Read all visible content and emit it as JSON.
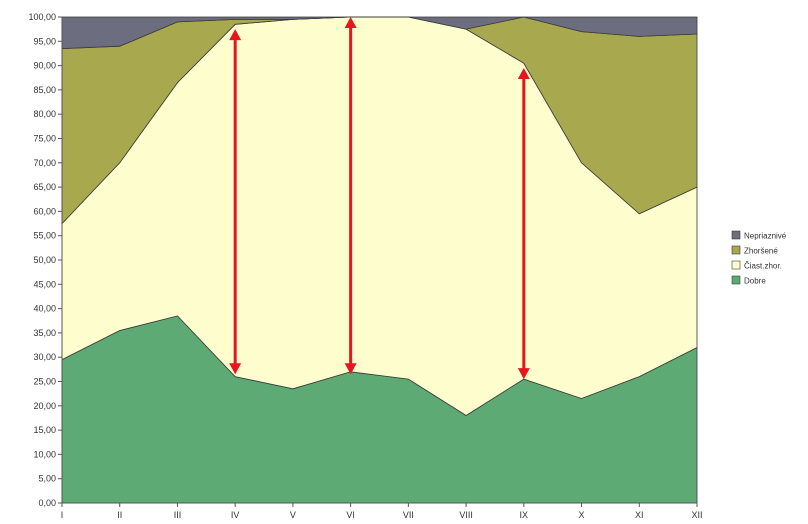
{
  "chart_data": {
    "type": "area",
    "stacked": true,
    "categories": [
      "I",
      "II",
      "III",
      "IV",
      "V",
      "VI",
      "VII",
      "VIII",
      "IX",
      "X",
      "XI",
      "XII"
    ],
    "ylim": [
      0,
      100
    ],
    "yticks": [
      "0,00",
      "5,00",
      "10,00",
      "15,00",
      "20,00",
      "25,00",
      "30,00",
      "35,00",
      "40,00",
      "45,00",
      "50,00",
      "55,00",
      "60,00",
      "65,00",
      "70,00",
      "75,00",
      "80,00",
      "85,00",
      "90,00",
      "95,00",
      "100,00"
    ],
    "series": [
      {
        "name": "Dobre",
        "color": "#5daa74",
        "values": [
          29.5,
          35.5,
          38.5,
          26,
          23.5,
          27,
          25.5,
          18,
          25.5,
          21.5,
          26,
          32
        ]
      },
      {
        "name": "Čiast.zhor.",
        "color": "#fdfdcd",
        "values": [
          28,
          34.5,
          48,
          72.5,
          76,
          73,
          74.5,
          79.5,
          65,
          48.5,
          33.5,
          33
        ]
      },
      {
        "name": "Zhoršené",
        "color": "#a8a84e",
        "values": [
          36,
          24,
          12.5,
          1,
          0,
          0,
          0,
          0,
          9.5,
          27,
          36.5,
          31.5
        ]
      },
      {
        "name": "Nepriaznivé",
        "color": "#6d6d80",
        "values": [
          6.5,
          6,
          1,
          0.5,
          0.5,
          0,
          0,
          2.5,
          0,
          3,
          4,
          3.5
        ]
      }
    ],
    "legend_position": "right",
    "grid": false,
    "annotations": [
      {
        "type": "double-arrow",
        "color": "#e8141e",
        "category": "IV",
        "from": 26.5,
        "to": 97.5
      },
      {
        "type": "double-arrow",
        "color": "#e8141e",
        "category": "VI",
        "from": 26.5,
        "to": 100
      },
      {
        "type": "double-arrow",
        "color": "#e8141e",
        "category": "IX",
        "from": 25.5,
        "to": 89.5
      }
    ]
  }
}
